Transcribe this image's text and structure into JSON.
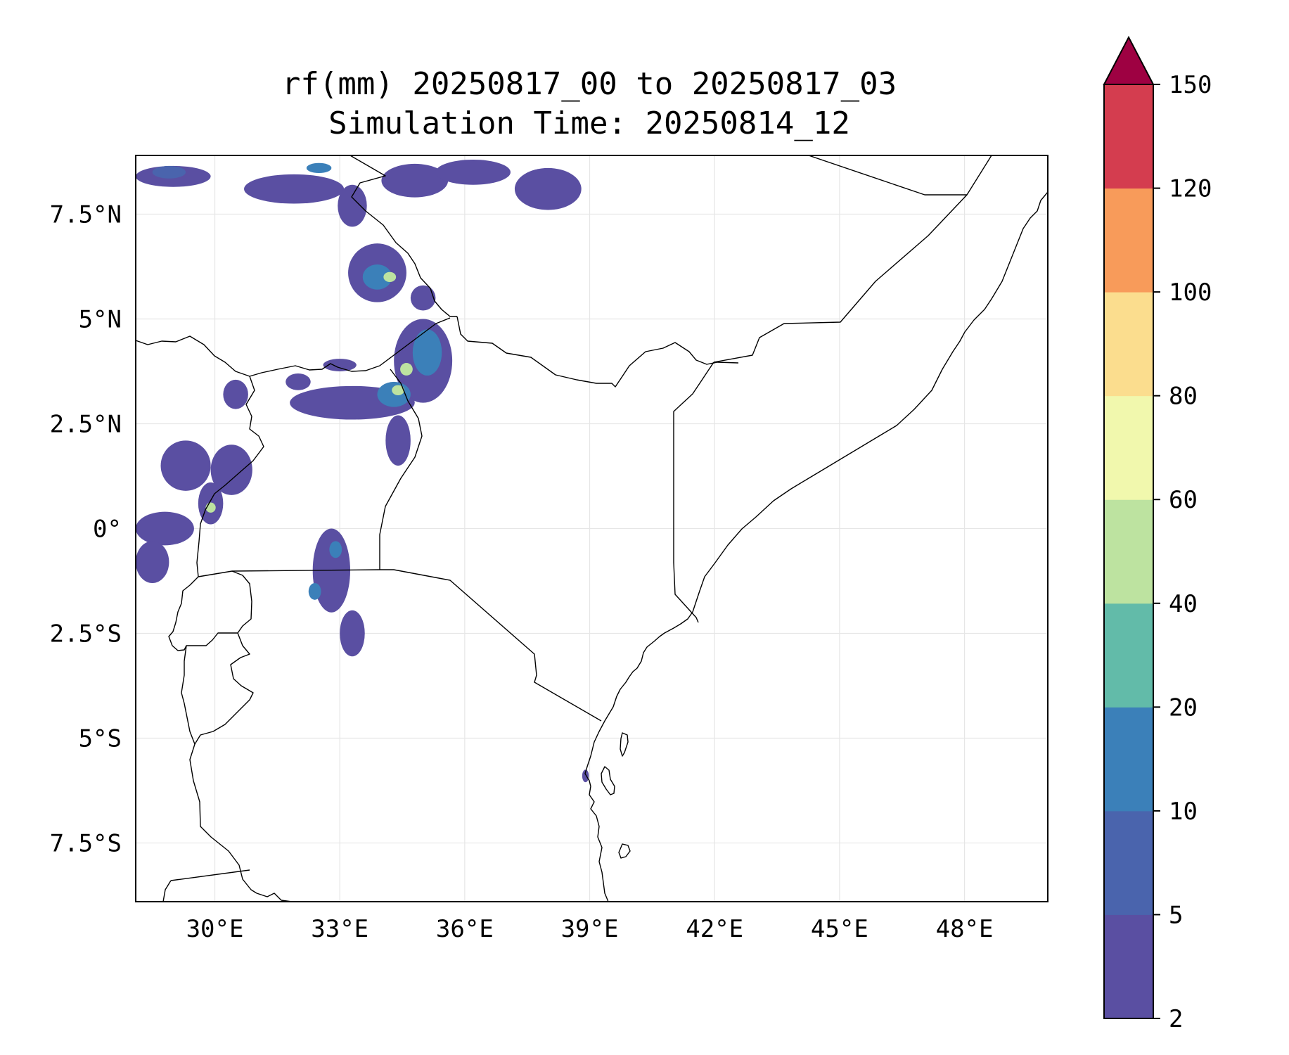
{
  "title": {
    "line1": "rf(mm) 20250817_00 to 20250817_03",
    "line2": "Simulation Time: 20250814_12"
  },
  "map": {
    "lon_range": [
      28.1,
      50.0
    ],
    "lat_range": [
      -8.9,
      8.9
    ],
    "x_ticks": [
      {
        "lon": 30,
        "label": "30°E"
      },
      {
        "lon": 33,
        "label": "33°E"
      },
      {
        "lon": 36,
        "label": "36°E"
      },
      {
        "lon": 39,
        "label": "39°E"
      },
      {
        "lon": 42,
        "label": "42°E"
      },
      {
        "lon": 45,
        "label": "45°E"
      },
      {
        "lon": 48,
        "label": "48°E"
      }
    ],
    "y_ticks": [
      {
        "lat": 7.5,
        "label": "7.5°N"
      },
      {
        "lat": 5,
        "label": "5°N"
      },
      {
        "lat": 2.5,
        "label": "2.5°N"
      },
      {
        "lat": 0,
        "label": "0°"
      },
      {
        "lat": -2.5,
        "label": "2.5°S"
      },
      {
        "lat": -5,
        "label": "5°S"
      },
      {
        "lat": -7.5,
        "label": "7.5°S"
      }
    ],
    "grid": true
  },
  "colorbar": {
    "levels": [
      2,
      5,
      10,
      20,
      40,
      60,
      80,
      100,
      120,
      150
    ],
    "tick_labels": [
      "2",
      "5",
      "10",
      "20",
      "40",
      "60",
      "80",
      "100",
      "120",
      "150"
    ],
    "colors": [
      "#5a4fa2",
      "#4a64ad",
      "#3b80b9",
      "#62bba9",
      "#bde3a0",
      "#f1f8ad",
      "#fbdd8e",
      "#f89b5a",
      "#d43d4f"
    ],
    "extend_color": "#9e0142",
    "extend": "max"
  },
  "rain_cells": [
    {
      "lon": 29.0,
      "lat": 8.4,
      "rx": 0.9,
      "ry": 0.25,
      "level": 1
    },
    {
      "lon": 31.9,
      "lat": 8.1,
      "rx": 1.2,
      "ry": 0.35,
      "level": 1
    },
    {
      "lon": 32.5,
      "lat": 8.6,
      "rx": 0.3,
      "ry": 0.12,
      "level": 3
    },
    {
      "lon": 33.3,
      "lat": 7.7,
      "rx": 0.35,
      "ry": 0.5,
      "level": 1
    },
    {
      "lon": 34.8,
      "lat": 8.3,
      "rx": 0.8,
      "ry": 0.4,
      "level": 1
    },
    {
      "lon": 36.2,
      "lat": 8.5,
      "rx": 0.9,
      "ry": 0.3,
      "level": 1
    },
    {
      "lon": 38.0,
      "lat": 8.1,
      "rx": 0.8,
      "ry": 0.5,
      "level": 1
    },
    {
      "lon": 33.9,
      "lat": 6.1,
      "rx": 0.7,
      "ry": 0.7,
      "level": 1
    },
    {
      "lon": 33.9,
      "lat": 6.0,
      "rx": 0.35,
      "ry": 0.3,
      "level": 3
    },
    {
      "lon": 34.2,
      "lat": 6.0,
      "rx": 0.15,
      "ry": 0.12,
      "level": 5
    },
    {
      "lon": 35.0,
      "lat": 5.5,
      "rx": 0.3,
      "ry": 0.3,
      "level": 1
    },
    {
      "lon": 35.0,
      "lat": 4.0,
      "rx": 0.7,
      "ry": 1.0,
      "level": 1
    },
    {
      "lon": 35.1,
      "lat": 4.2,
      "rx": 0.35,
      "ry": 0.55,
      "level": 3
    },
    {
      "lon": 34.6,
      "lat": 3.8,
      "rx": 0.15,
      "ry": 0.15,
      "level": 5
    },
    {
      "lon": 33.3,
      "lat": 3.0,
      "rx": 1.5,
      "ry": 0.4,
      "level": 1
    },
    {
      "lon": 34.3,
      "lat": 3.2,
      "rx": 0.4,
      "ry": 0.3,
      "level": 3
    },
    {
      "lon": 34.4,
      "lat": 3.3,
      "rx": 0.15,
      "ry": 0.12,
      "level": 5
    },
    {
      "lon": 34.4,
      "lat": 2.1,
      "rx": 0.3,
      "ry": 0.6,
      "level": 1
    },
    {
      "lon": 30.5,
      "lat": 3.2,
      "rx": 0.3,
      "ry": 0.35,
      "level": 1
    },
    {
      "lon": 32.0,
      "lat": 3.5,
      "rx": 0.3,
      "ry": 0.2,
      "level": 1
    },
    {
      "lon": 33.0,
      "lat": 3.9,
      "rx": 0.4,
      "ry": 0.15,
      "level": 1
    },
    {
      "lon": 29.3,
      "lat": 1.5,
      "rx": 0.6,
      "ry": 0.6,
      "level": 1
    },
    {
      "lon": 30.4,
      "lat": 1.4,
      "rx": 0.5,
      "ry": 0.6,
      "level": 1
    },
    {
      "lon": 29.9,
      "lat": 0.6,
      "rx": 0.3,
      "ry": 0.5,
      "level": 1
    },
    {
      "lon": 29.9,
      "lat": 0.5,
      "rx": 0.12,
      "ry": 0.12,
      "level": 5
    },
    {
      "lon": 28.8,
      "lat": 0.0,
      "rx": 0.7,
      "ry": 0.4,
      "level": 1
    },
    {
      "lon": 28.5,
      "lat": -0.8,
      "rx": 0.4,
      "ry": 0.5,
      "level": 1
    },
    {
      "lon": 32.8,
      "lat": -1.0,
      "rx": 0.45,
      "ry": 1.0,
      "level": 1
    },
    {
      "lon": 32.9,
      "lat": -0.5,
      "rx": 0.15,
      "ry": 0.2,
      "level": 3
    },
    {
      "lon": 32.4,
      "lat": -1.5,
      "rx": 0.15,
      "ry": 0.2,
      "level": 3
    },
    {
      "lon": 33.3,
      "lat": -2.5,
      "rx": 0.3,
      "ry": 0.55,
      "level": 1
    },
    {
      "lon": 28.9,
      "lat": 8.5,
      "rx": 0.4,
      "ry": 0.15,
      "level": 2
    },
    {
      "lon": 38.9,
      "lat": -5.9,
      "rx": 0.08,
      "ry": 0.15,
      "level": 1
    }
  ]
}
